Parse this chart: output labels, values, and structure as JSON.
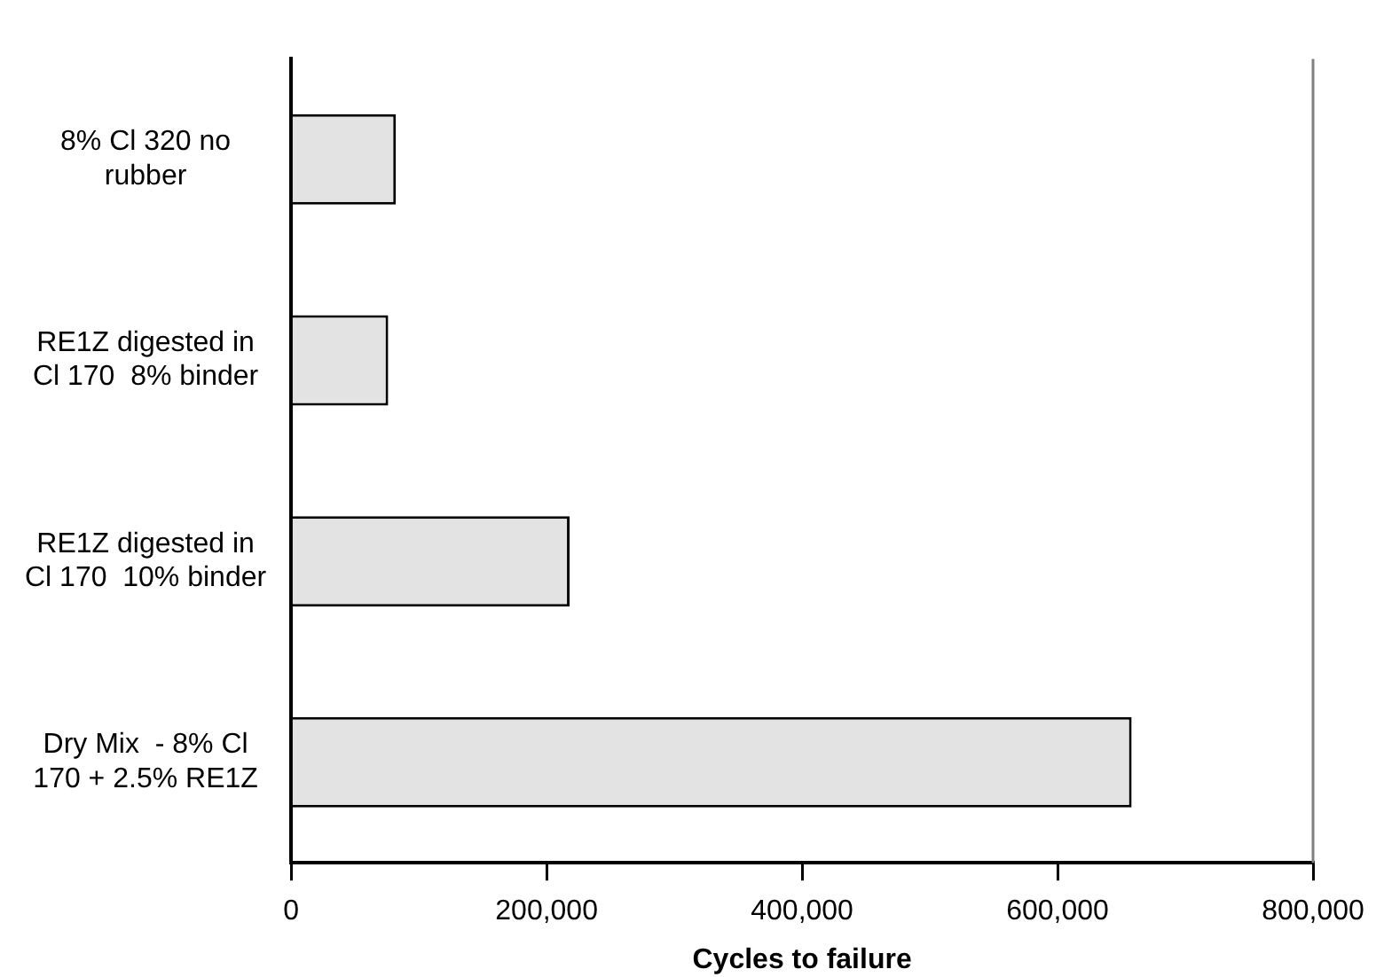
{
  "chart_data": {
    "type": "bar",
    "orientation": "horizontal",
    "xlabel": "Cycles to failure",
    "categories": [
      "8% Cl 320 no\nrubber",
      "RE1Z digested in\nCl 170  8% binder",
      "RE1Z digested in\nCl 170  10% binder",
      "Dry Mix  - 8% Cl\n170 + 2.5% RE1Z"
    ],
    "values": [
      82000,
      76000,
      218000,
      658000
    ],
    "color": "#e3e3e3",
    "xlim": [
      0,
      800000
    ],
    "xticks": [
      {
        "value": 0,
        "label": "0"
      },
      {
        "value": 200000,
        "label": "200,000"
      },
      {
        "value": 400000,
        "label": "400,000"
      },
      {
        "value": 600000,
        "label": "600,000"
      },
      {
        "value": 800000,
        "label": "800,000"
      }
    ],
    "grid": false,
    "legend": false
  }
}
